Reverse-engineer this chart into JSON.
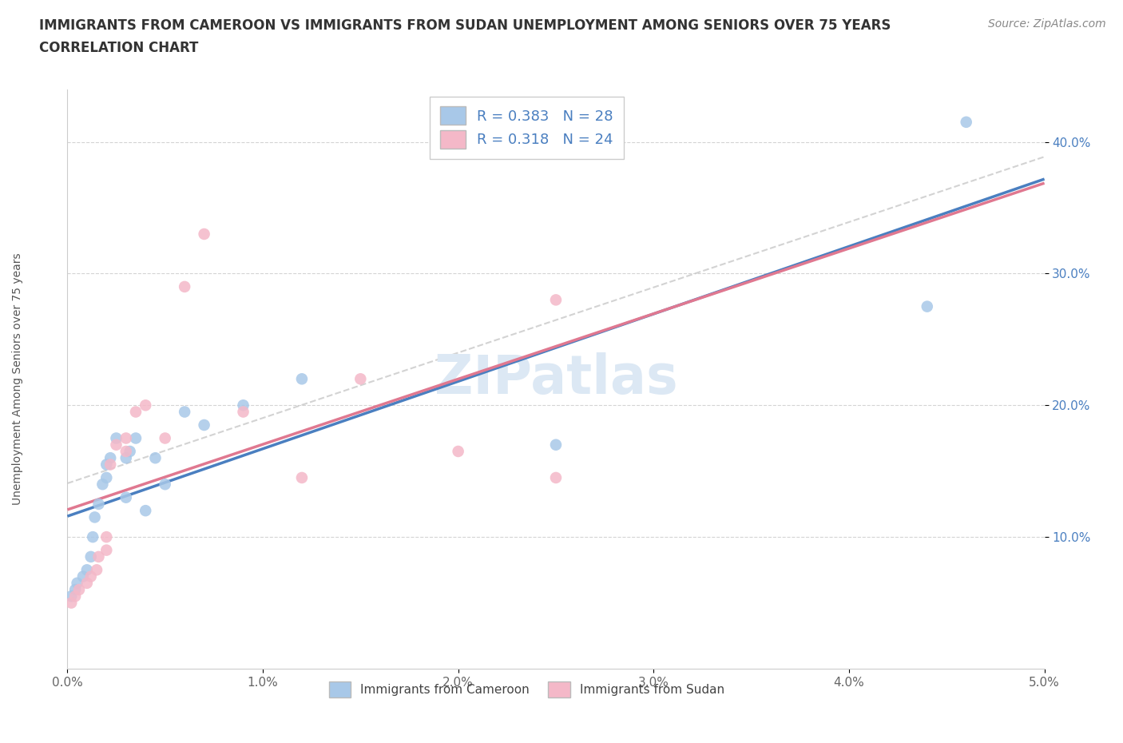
{
  "title_line1": "IMMIGRANTS FROM CAMEROON VS IMMIGRANTS FROM SUDAN UNEMPLOYMENT AMONG SENIORS OVER 75 YEARS",
  "title_line2": "CORRELATION CHART",
  "source": "Source: ZipAtlas.com",
  "ylabel": "Unemployment Among Seniors over 75 years",
  "xlim": [
    0.0,
    0.05
  ],
  "ylim": [
    0.0,
    0.44
  ],
  "xticks": [
    0.0,
    0.01,
    0.02,
    0.03,
    0.04,
    0.05
  ],
  "xticklabels": [
    "0.0%",
    "1.0%",
    "2.0%",
    "3.0%",
    "4.0%",
    "5.0%"
  ],
  "ytick_positions": [
    0.1,
    0.2,
    0.3,
    0.4
  ],
  "yticklabels": [
    "10.0%",
    "20.0%",
    "30.0%",
    "40.0%"
  ],
  "watermark": "ZIPatlas",
  "legend_label1": "Immigrants from Cameroon",
  "legend_label2": "Immigrants from Sudan",
  "color_cameroon": "#a8c8e8",
  "color_sudan": "#f4b8c8",
  "color_cameroon_line": "#4a7fc0",
  "color_sudan_line": "#e07890",
  "color_gray_dashed": "#c8c8c8",
  "cameroon_x": [
    0.0002,
    0.0004,
    0.0005,
    0.0008,
    0.001,
    0.0012,
    0.0013,
    0.0014,
    0.0016,
    0.0018,
    0.002,
    0.002,
    0.0022,
    0.0025,
    0.003,
    0.003,
    0.0032,
    0.0035,
    0.004,
    0.0045,
    0.005,
    0.006,
    0.007,
    0.009,
    0.012,
    0.025,
    0.044,
    0.046
  ],
  "cameroon_y": [
    0.055,
    0.06,
    0.065,
    0.07,
    0.075,
    0.085,
    0.1,
    0.115,
    0.125,
    0.14,
    0.145,
    0.155,
    0.16,
    0.175,
    0.13,
    0.16,
    0.165,
    0.175,
    0.12,
    0.16,
    0.14,
    0.195,
    0.185,
    0.2,
    0.22,
    0.17,
    0.275,
    0.415
  ],
  "sudan_x": [
    0.0002,
    0.0004,
    0.0006,
    0.001,
    0.0012,
    0.0015,
    0.0016,
    0.002,
    0.002,
    0.0022,
    0.0025,
    0.003,
    0.003,
    0.0035,
    0.004,
    0.005,
    0.006,
    0.007,
    0.009,
    0.012,
    0.015,
    0.02,
    0.025,
    0.025
  ],
  "sudan_y": [
    0.05,
    0.055,
    0.06,
    0.065,
    0.07,
    0.075,
    0.085,
    0.1,
    0.09,
    0.155,
    0.17,
    0.165,
    0.175,
    0.195,
    0.2,
    0.175,
    0.29,
    0.33,
    0.195,
    0.145,
    0.22,
    0.165,
    0.145,
    0.28
  ],
  "title_fontsize": 12,
  "subtitle_fontsize": 12,
  "axis_label_fontsize": 10,
  "tick_fontsize": 11,
  "source_fontsize": 10,
  "legend_fontsize": 13,
  "watermark_fontsize": 48,
  "watermark_color": "#dce8f4",
  "background_color": "#ffffff",
  "grid_color": "#d0d0d0",
  "ytick_color": "#4a7fc0",
  "xtick_color": "#666666"
}
